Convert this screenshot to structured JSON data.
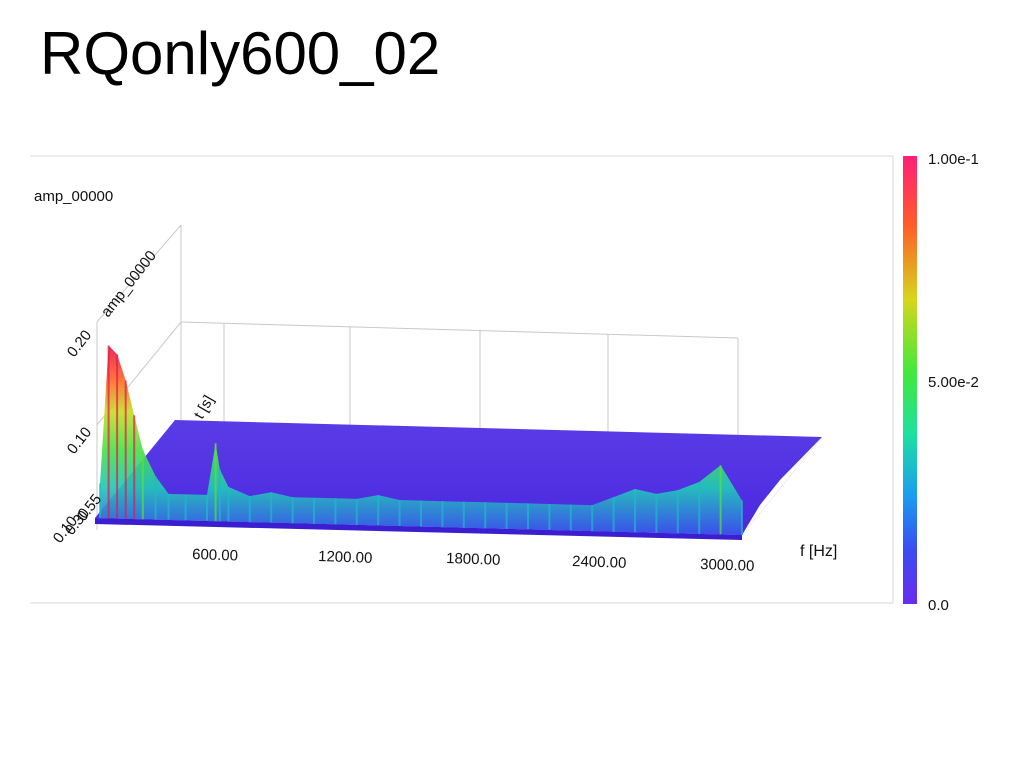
{
  "slide": {
    "title": "RQonly600_02"
  },
  "chart_data": {
    "type": "surface3d",
    "panel_title": "amp_00000",
    "x_axis": {
      "label": "f [Hz]",
      "ticks": [
        "600.00",
        "1200.00",
        "1800.00",
        "2400.00",
        "3000.00"
      ],
      "range": [
        0,
        3000
      ]
    },
    "y_axis": {
      "label": "t [s]",
      "ticks_overlapping": [
        "0.10",
        "0.30",
        "0.55"
      ]
    },
    "z_axis": {
      "label": "amp_00000",
      "ticks": [
        "0.10",
        "0.20"
      ],
      "tick_origin": "0.10",
      "range": [
        0,
        0.22
      ]
    },
    "colorbar": {
      "labels": [
        "1.00e-1",
        "5.00e-2",
        "0.0"
      ],
      "max": 0.1,
      "min": 0.0
    },
    "peak_profile_freq_hz": [
      0,
      40,
      80,
      120,
      160,
      200,
      260,
      320,
      400,
      500,
      540,
      560,
      600,
      700,
      800,
      900,
      1000,
      1100,
      1200,
      1300,
      1400,
      1500,
      1600,
      1700,
      1800,
      1900,
      2000,
      2100,
      2200,
      2300,
      2400,
      2500,
      2600,
      2700,
      2800,
      2900,
      3000
    ],
    "peak_profile_amp": [
      0.04,
      0.2,
      0.19,
      0.16,
      0.12,
      0.08,
      0.05,
      0.03,
      0.03,
      0.03,
      0.09,
      0.06,
      0.04,
      0.03,
      0.035,
      0.03,
      0.03,
      0.03,
      0.03,
      0.035,
      0.03,
      0.03,
      0.03,
      0.03,
      0.03,
      0.03,
      0.03,
      0.03,
      0.03,
      0.03,
      0.04,
      0.05,
      0.045,
      0.05,
      0.06,
      0.08,
      0.04
    ]
  }
}
